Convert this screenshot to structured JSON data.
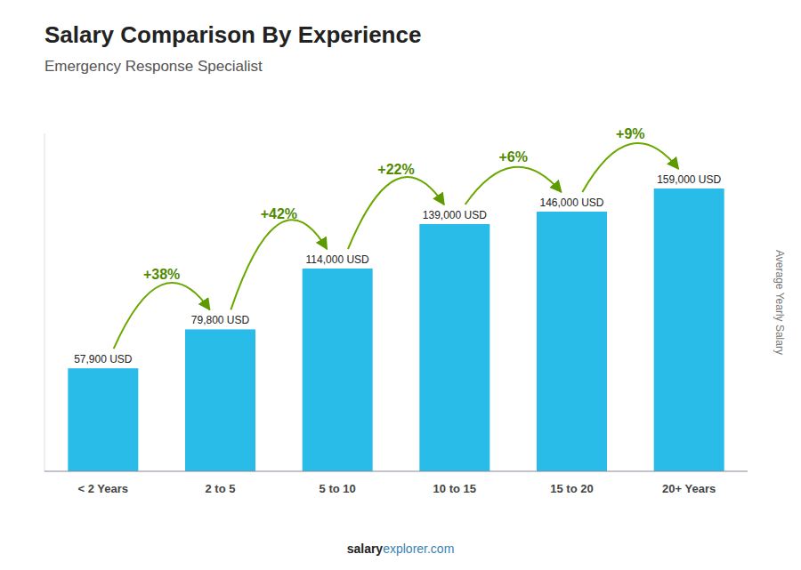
{
  "chart_data": {
    "type": "bar",
    "title": "Salary Comparison By Experience",
    "subtitle": "Emergency Response Specialist",
    "ylabel": "Average Yearly Salary",
    "footer": [
      "salary",
      "explorer.com"
    ],
    "categories": [
      "< 2 Years",
      "2 to 5",
      "5 to 10",
      "10 to 15",
      "15 to 20",
      "20+ Years"
    ],
    "values": [
      57900,
      79800,
      114000,
      139000,
      146000,
      159000
    ],
    "value_labels": [
      "57,900 USD",
      "79,800 USD",
      "114,000 USD",
      "139,000 USD",
      "146,000 USD",
      "159,000 USD"
    ],
    "annotations": [
      "+38%",
      "+42%",
      "+22%",
      "+6%",
      "+9%"
    ],
    "color": "#29bce8",
    "ylim": [
      0,
      190000
    ],
    "data_labels": true,
    "tick_labels": "x",
    "grid": false
  }
}
